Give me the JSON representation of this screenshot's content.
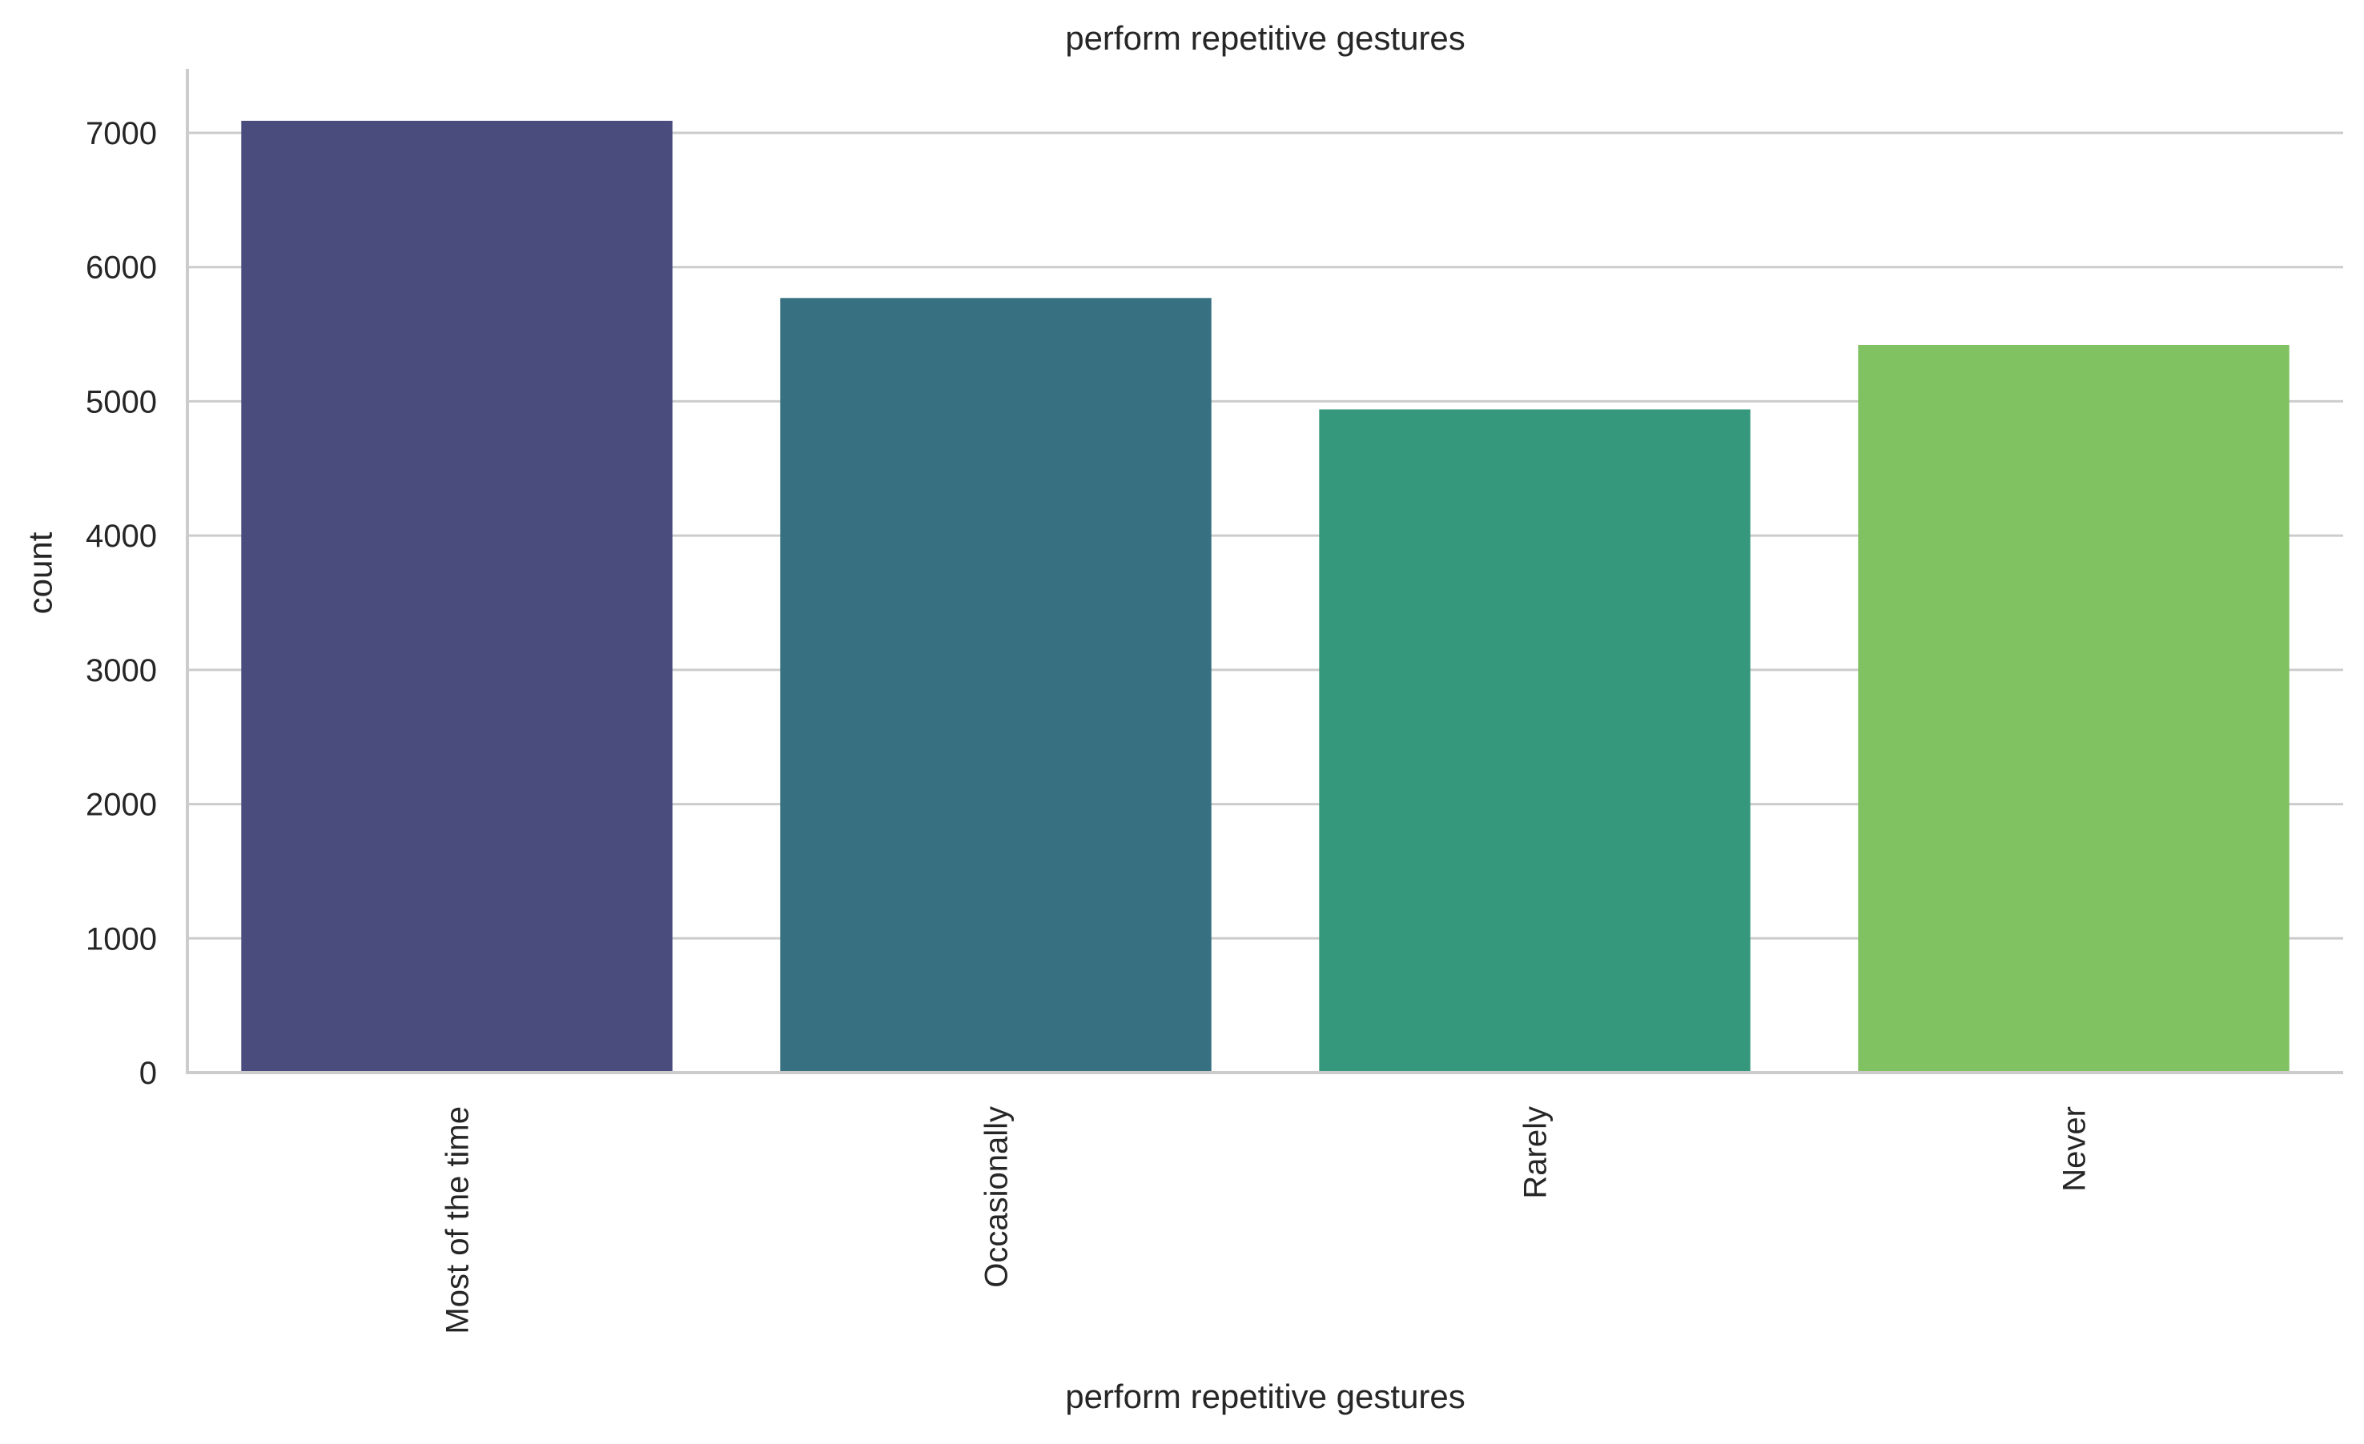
{
  "chart_data": {
    "type": "bar",
    "title": "perform repetitive gestures",
    "xlabel": "perform repetitive gestures",
    "ylabel": "count",
    "categories": [
      "Most of the time",
      "Occasionally",
      "Rarely",
      "Never"
    ],
    "values": [
      7090,
      5770,
      4940,
      5420
    ],
    "colors": [
      "#4a4c7d",
      "#377181",
      "#35987c",
      "#80c262"
    ],
    "ylim": [
      0,
      7500
    ],
    "yticks": [
      0,
      1000,
      2000,
      3000,
      4000,
      5000,
      6000,
      7000
    ],
    "grid": true,
    "grid_axis": "y",
    "x_tick_rotation": "vertical"
  }
}
